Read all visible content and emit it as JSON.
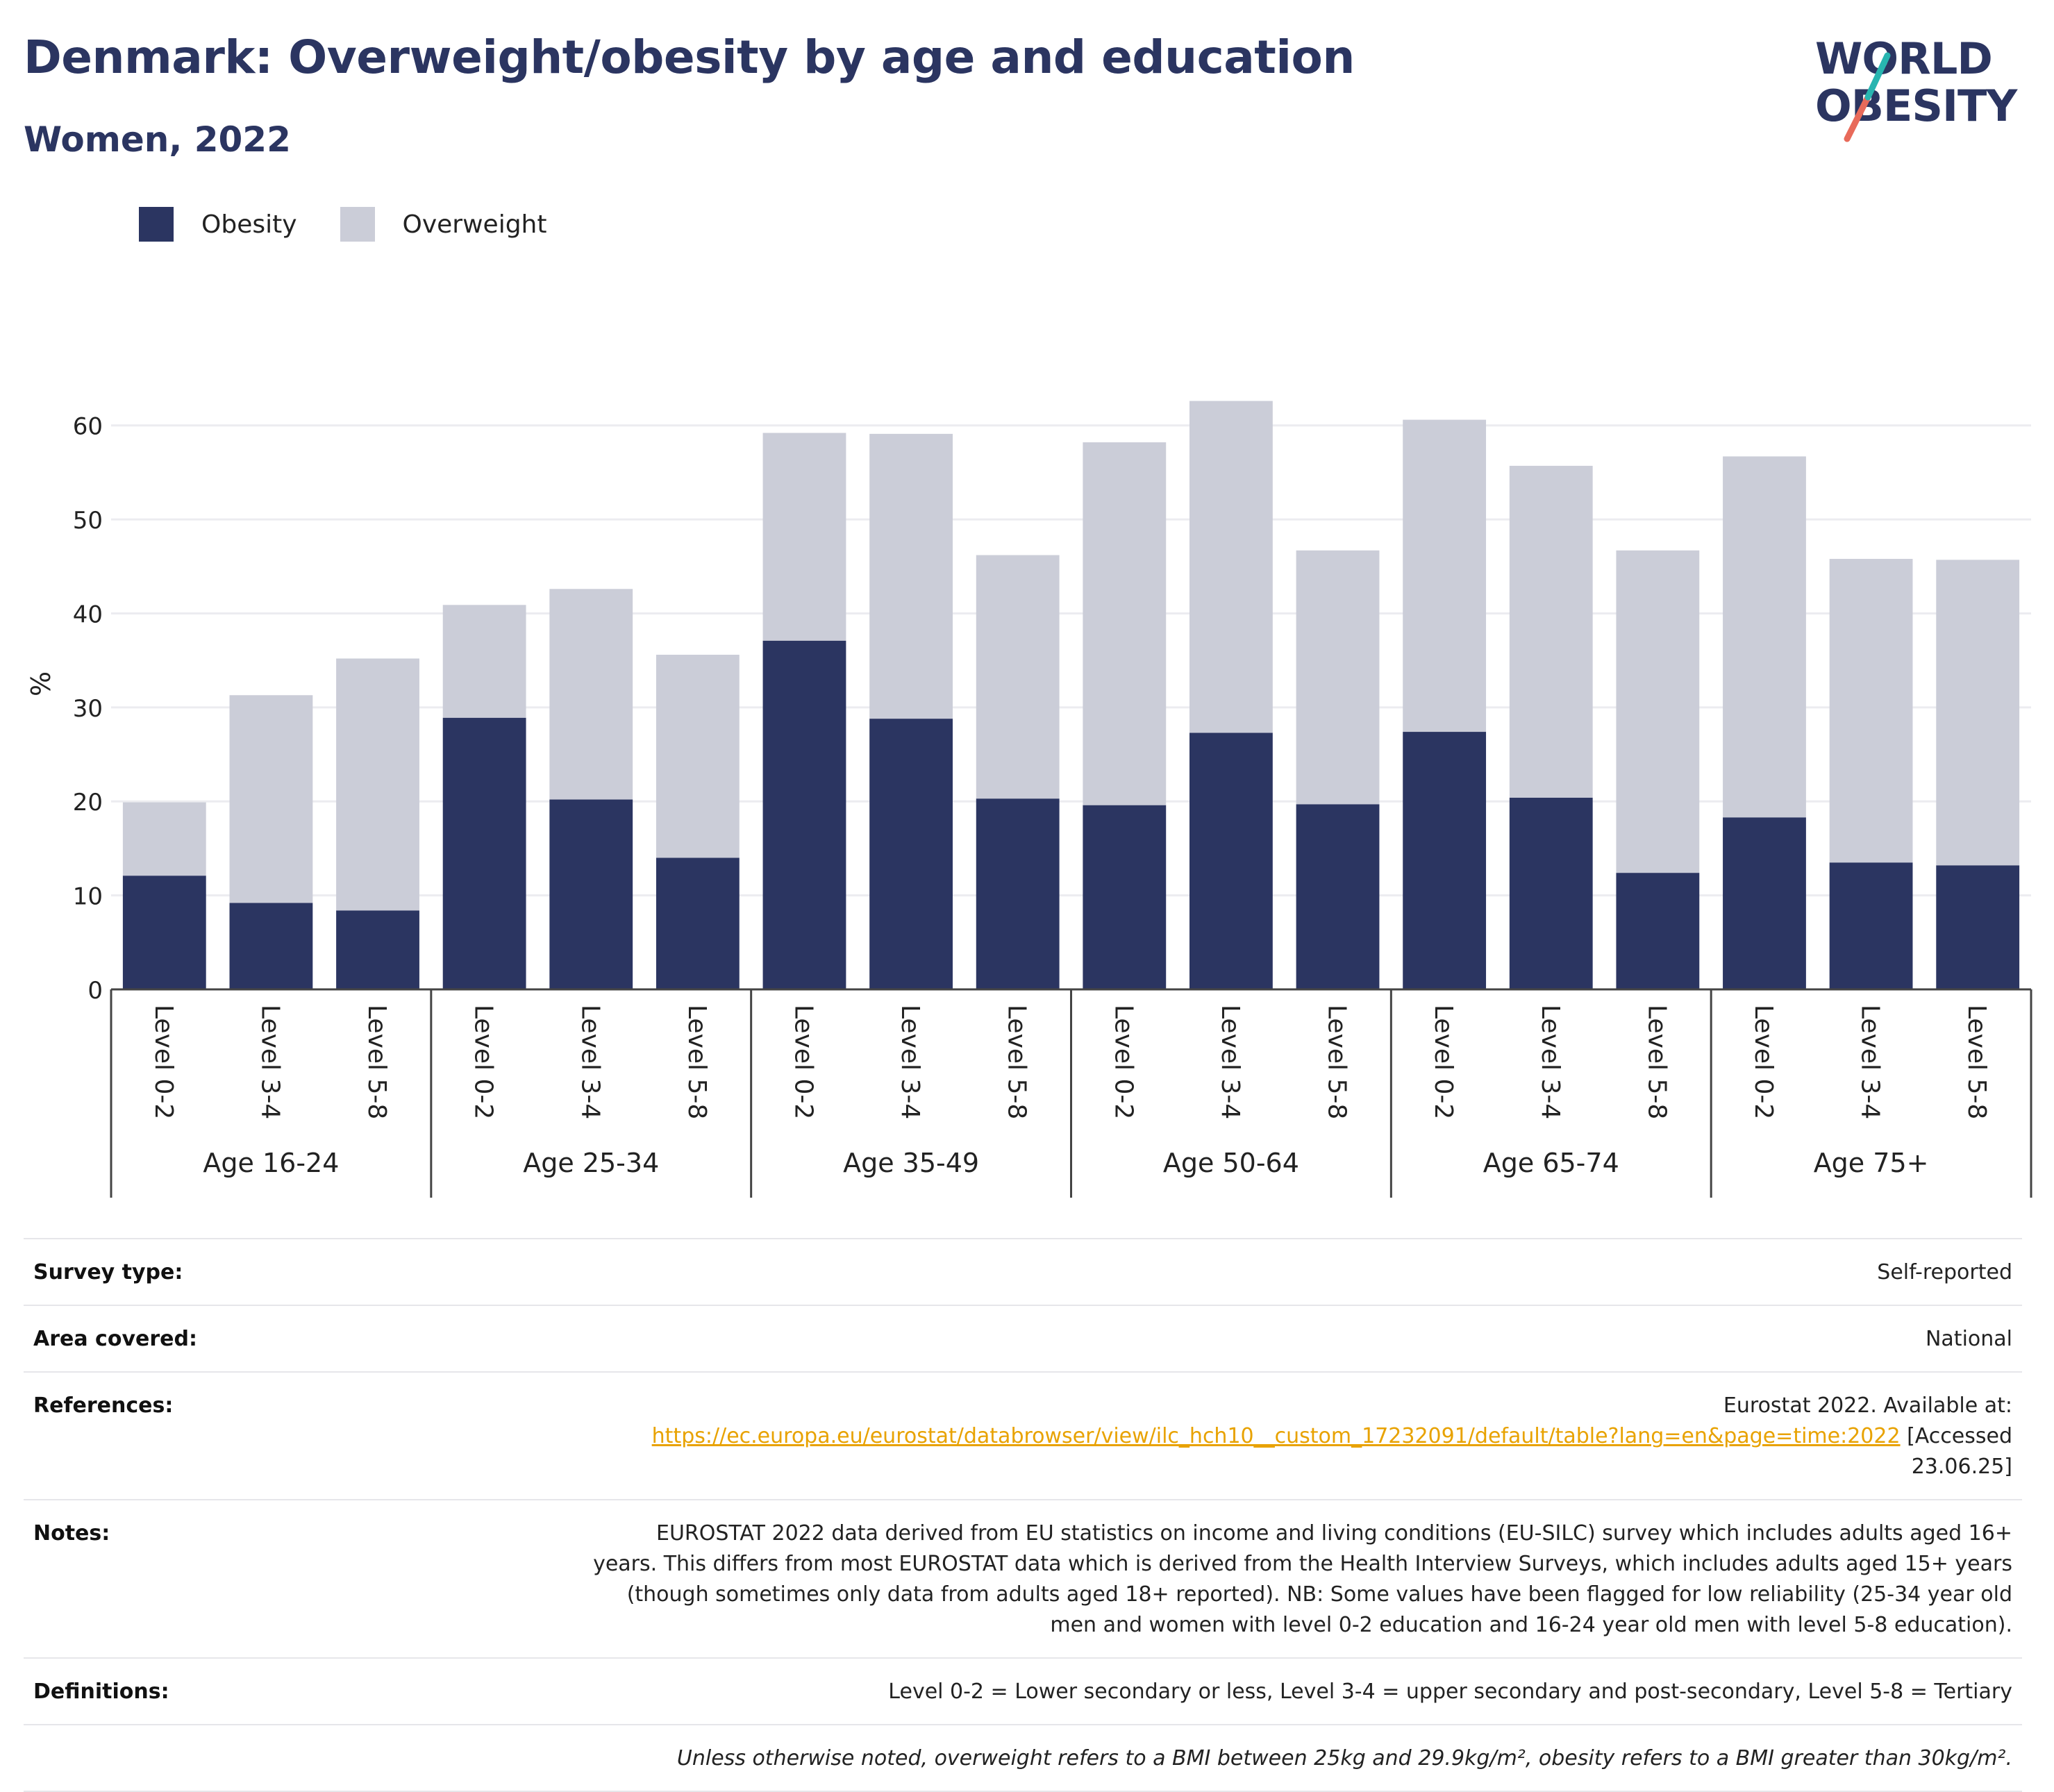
{
  "header": {
    "title": "Denmark: Overweight/obesity by age and education",
    "subtitle": "Women, 2022"
  },
  "logo": {
    "line1": "WORLD",
    "line2": "OBESITY"
  },
  "legend": [
    {
      "label": "Obesity",
      "color": "#2b3561"
    },
    {
      "label": "Overweight",
      "color": "#cbcdd8"
    }
  ],
  "chart_data": {
    "type": "bar",
    "stacked": true,
    "ylabel": "%",
    "ylim": [
      0,
      65
    ],
    "yticks": [
      0,
      10,
      20,
      30,
      40,
      50,
      60
    ],
    "grid": true,
    "groups": [
      {
        "label": "Age 16-24",
        "categories": [
          "Level 0-2",
          "Level 3-4",
          "Level 5-8"
        ]
      },
      {
        "label": "Age 25-34",
        "categories": [
          "Level 0-2",
          "Level 3-4",
          "Level 5-8"
        ]
      },
      {
        "label": "Age 35-49",
        "categories": [
          "Level 0-2",
          "Level 3-4",
          "Level 5-8"
        ]
      },
      {
        "label": "Age 50-64",
        "categories": [
          "Level 0-2",
          "Level 3-4",
          "Level 5-8"
        ]
      },
      {
        "label": "Age 65-74",
        "categories": [
          "Level 0-2",
          "Level 3-4",
          "Level 5-8"
        ]
      },
      {
        "label": "Age 75+",
        "categories": [
          "Level 0-2",
          "Level 3-4",
          "Level 5-8"
        ]
      }
    ],
    "series": [
      {
        "name": "Obesity",
        "color": "#2b3561",
        "values": [
          12.1,
          9.2,
          8.4,
          28.9,
          20.2,
          14.0,
          37.1,
          28.8,
          20.3,
          19.6,
          27.3,
          19.7,
          27.4,
          20.4,
          12.4,
          18.3,
          13.5,
          13.2
        ]
      },
      {
        "name": "Overweight",
        "color": "#cbcdd8",
        "values": [
          7.8,
          22.1,
          26.8,
          12.0,
          22.4,
          21.6,
          22.1,
          30.3,
          25.9,
          38.6,
          35.3,
          27.0,
          33.2,
          35.3,
          34.3,
          38.4,
          32.3,
          32.5
        ]
      }
    ]
  },
  "info": {
    "survey_type": {
      "label": "Survey type:",
      "value": "Self-reported"
    },
    "area_covered": {
      "label": "Area covered:",
      "value": "National"
    },
    "references": {
      "label": "References:",
      "line1": "Eurostat 2022. Available at:",
      "link": "https://ec.europa.eu/eurostat/databrowser/view/ilc_hch10__custom_17232091/default/table?lang=en&page=time:2022",
      "after_link": " [Accessed",
      "line3": "23.06.25]"
    },
    "notes": {
      "label": "Notes:",
      "lines": [
        "EUROSTAT 2022 data derived from EU statistics on income and living conditions (EU-SILC) survey which includes adults aged 16+",
        "years. This differs from most EUROSTAT data which is derived from the Health Interview Surveys, which includes adults aged 15+ years",
        "(though sometimes only data from adults aged 18+ reported). NB: Some values have been flagged for low reliability (25-34 year old",
        "men and women with level 0-2 education and 16-24 year old men with level 5-8 education)."
      ]
    },
    "definitions": {
      "label": "Definitions:",
      "value": "Level 0-2 = Lower secondary or less, Level 3-4 = upper secondary and post-secondary, Level 5-8 = Tertiary"
    },
    "footnote": "Unless otherwise noted, overweight refers to a BMI between 25kg and 29.9kg/m², obesity refers to a BMI greater than 30kg/m²."
  }
}
